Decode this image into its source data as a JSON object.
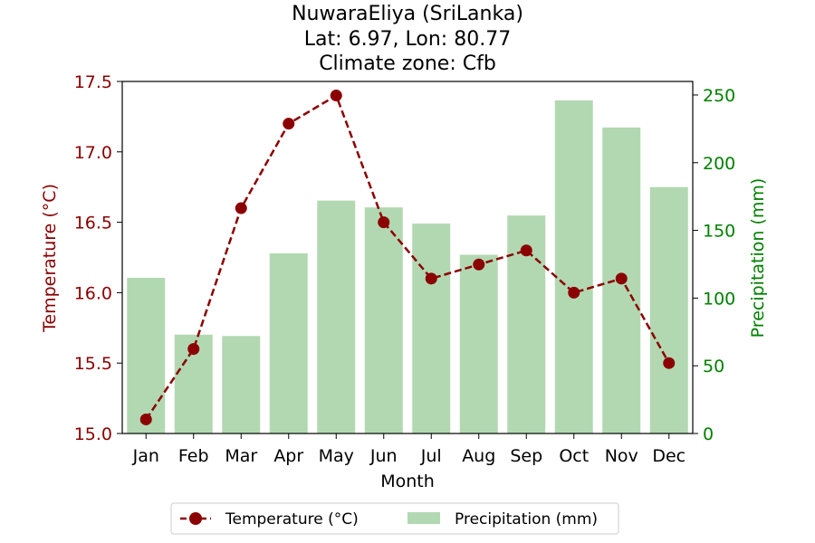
{
  "chart_data": {
    "type": "bar",
    "title_lines": [
      "NuwaraEliya (SriLanka)",
      "Lat: 6.97, Lon: 80.77",
      "Climate zone: Cfb"
    ],
    "xlabel": "Month",
    "ylabel_left": "Temperature (°C)",
    "ylabel_right": "Precipitation (mm)",
    "categories": [
      "Jan",
      "Feb",
      "Mar",
      "Apr",
      "May",
      "Jun",
      "Jul",
      "Aug",
      "Sep",
      "Oct",
      "Nov",
      "Dec"
    ],
    "temperature": {
      "name": "Temperature (°C)",
      "color": "#8b0000",
      "values": [
        15.1,
        15.6,
        16.6,
        17.2,
        17.4,
        16.5,
        16.1,
        16.2,
        16.3,
        16.0,
        16.1,
        15.5
      ]
    },
    "precipitation": {
      "name": "Precipitation (mm)",
      "color": "#b2d8b2",
      "values": [
        115,
        73,
        72,
        133,
        172,
        167,
        155,
        132,
        161,
        246,
        226,
        182
      ]
    },
    "ylim_left": [
      15.0,
      17.5
    ],
    "yticks_left": [
      "15.0",
      "15.5",
      "16.0",
      "16.5",
      "17.0",
      "17.5"
    ],
    "ylim_right": [
      0,
      260
    ],
    "yticks_right": [
      "0",
      "50",
      "100",
      "150",
      "200",
      "250"
    ],
    "left_axis_color": "#8b0000",
    "right_axis_color": "#008000",
    "grid": false,
    "legend_position": "bottom-center"
  }
}
